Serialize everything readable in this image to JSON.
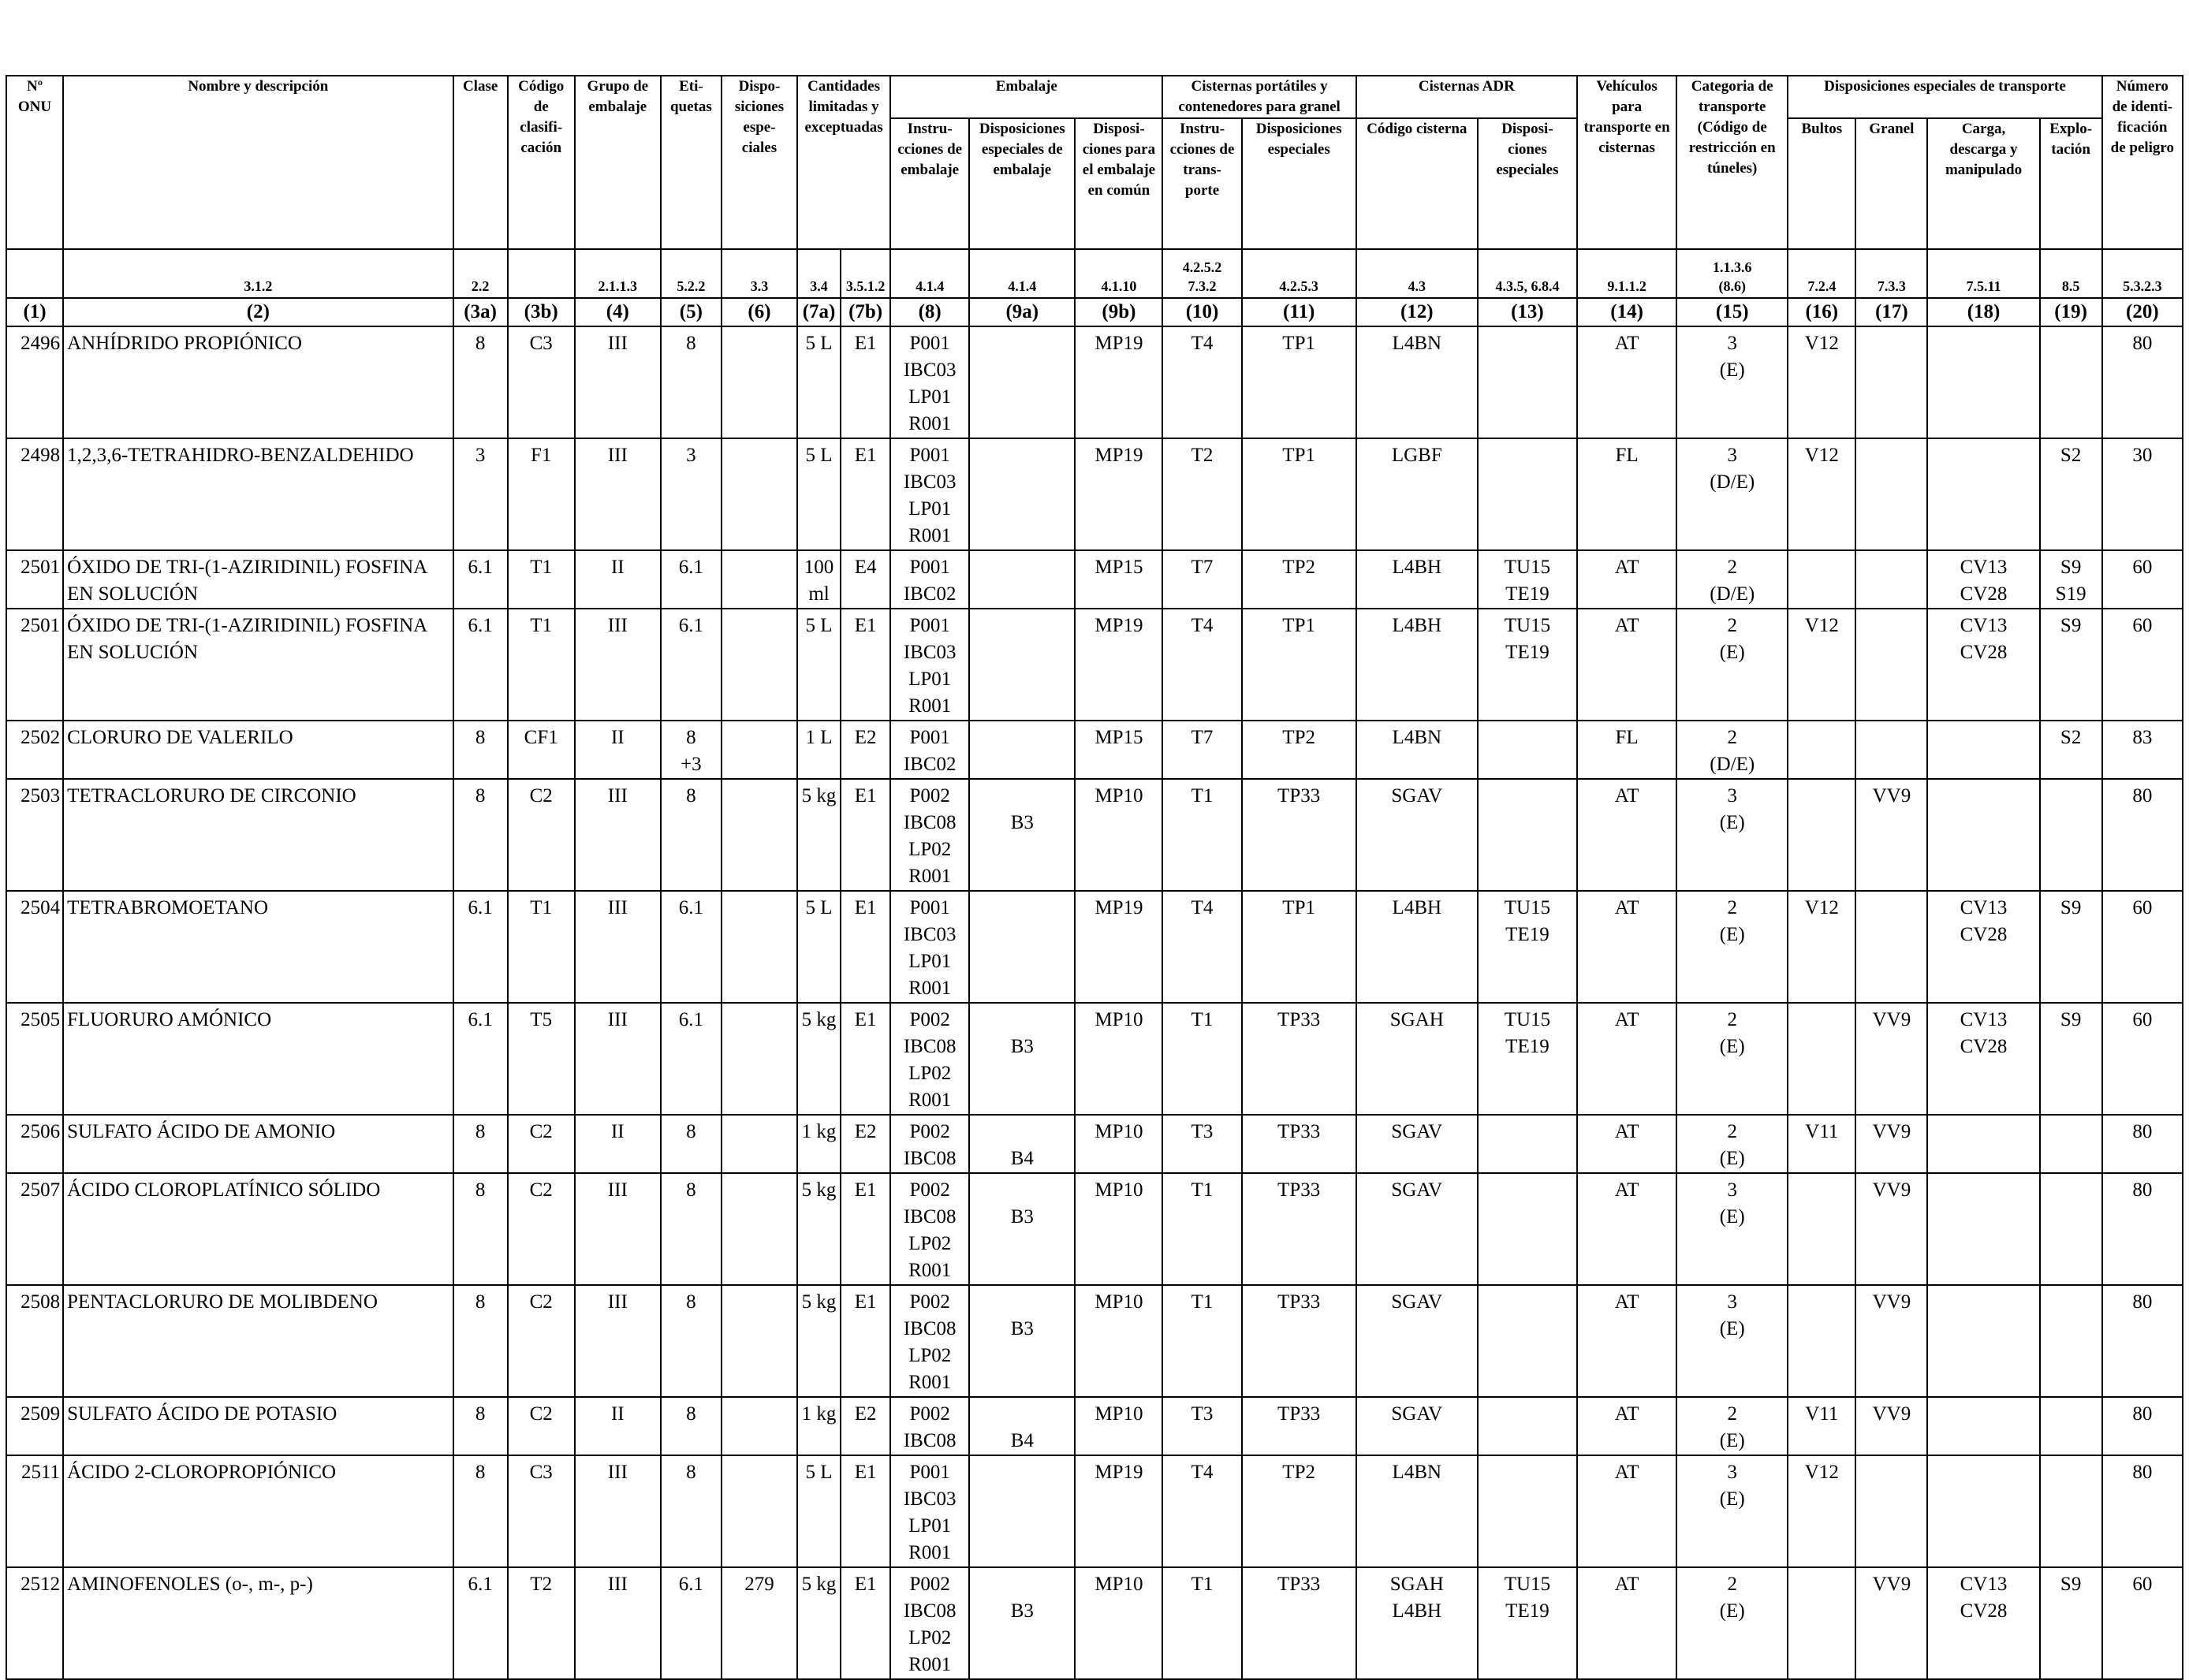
{
  "header": {
    "un": "Nº\nONU",
    "name": "Nombre y descripción",
    "clase": "Clase",
    "codigo": "Código\nde clasifi-\ncación",
    "grupo": "Grupo de\nembalaje",
    "etiquetas": "Eti-\nquetas",
    "disposiciones": "Dispo-\nsiciones\nespe-\nciales",
    "cantidades": "Cantidades\nlimitadas y\nexceptuadas",
    "embalaje": "Embalaje",
    "instrucciones": "Instru-\ncciones de\nembalaje",
    "disp_emb": "Disposiciones\nespeciales de\nembalaje",
    "disp_comun": "Disposi-\nciones para\nel embalaje\nen común",
    "cisternas_port": "Cisternas portátiles y\ncontenedores para granel",
    "instr_transp": "Instru-\ncciones de\ntrans-\nporte",
    "disp_esp_cist": "Disposiciones\nespeciales",
    "cisternas_adr": "Cisternas ADR",
    "codigo_cisterna": "Código cisterna",
    "disp_esp_adr": "Disposi-\nciones\nespeciales",
    "vehiculos": "Vehículos\npara\ntransporte en\ncisternas",
    "categoria": "Categoria de\ntransporte\n(Código de\nrestricción en\ntúneles)",
    "disp_transp": "Disposiciones especiales de transporte",
    "bultos": "Bultos",
    "granel": "Granel",
    "carga": "Carga,\ndescarga y\nmanipulado",
    "explo": "Explo-\ntación",
    "numero": "Número\nde identi-\nficación\nde peligro"
  },
  "refs": [
    "",
    "3.1.2",
    "2.2",
    "",
    "2.1.1.3",
    "5.2.2",
    "3.3",
    "3.4",
    "3.5.1.2",
    "4.1.4",
    "4.1.4",
    "4.1.10",
    "4.2.5.2\n7.3.2",
    "4.2.5.3",
    "4.3",
    "4.3.5, 6.8.4",
    "9.1.1.2",
    "1.1.3.6\n(8.6)",
    "7.2.4",
    "7.3.3",
    "7.5.11",
    "8.5",
    "5.3.2.3"
  ],
  "colnums": [
    "(1)",
    "(2)",
    "(3a)",
    "(3b)",
    "(4)",
    "(5)",
    "(6)",
    "(7a)",
    "(7b)",
    "(8)",
    "(9a)",
    "(9b)",
    "(10)",
    "(11)",
    "(12)",
    "(13)",
    "(14)",
    "(15)",
    "(16)",
    "(17)",
    "(18)",
    "(19)",
    "(20)"
  ],
  "rows": [
    [
      "2496",
      "ANHÍDRIDO PROPIÓNICO",
      "8",
      "C3",
      "III",
      "8",
      "",
      "5 L",
      "E1",
      "P001\nIBC03\nLP01\nR001",
      "",
      "MP19",
      "T4",
      "TP1",
      "L4BN",
      "",
      "AT",
      "3\n(E)",
      "V12",
      "",
      "",
      "",
      "80"
    ],
    [
      "2498",
      "1,2,3,6-TETRAHIDRO-BENZALDEHIDO",
      "3",
      "F1",
      "III",
      "3",
      "",
      "5 L",
      "E1",
      "P001\nIBC03\nLP01\nR001",
      "",
      "MP19",
      "T2",
      "TP1",
      "LGBF",
      "",
      "FL",
      "3\n(D/E)",
      "V12",
      "",
      "",
      "S2",
      "30"
    ],
    [
      "2501",
      "ÓXIDO DE TRI-(1-AZIRIDINIL) FOSFINA\nEN SOLUCIÓN",
      "6.1",
      "T1",
      "II",
      "6.1",
      "",
      "100\nml",
      "E4",
      "P001\nIBC02",
      "",
      "MP15",
      "T7",
      "TP2",
      "L4BH",
      "TU15\nTE19",
      "AT",
      "2\n(D/E)",
      "",
      "",
      "CV13\nCV28",
      "S9\nS19",
      "60"
    ],
    [
      "2501",
      "ÓXIDO DE TRI-(1-AZIRIDINIL) FOSFINA\nEN SOLUCIÓN",
      "6.1",
      "T1",
      "III",
      "6.1",
      "",
      "5 L",
      "E1",
      "P001\nIBC03\nLP01\nR001",
      "",
      "MP19",
      "T4",
      "TP1",
      "L4BH",
      "TU15\nTE19",
      "AT",
      "2\n(E)",
      "V12",
      "",
      "CV13\nCV28",
      "S9",
      "60"
    ],
    [
      "2502",
      "CLORURO DE VALERILO",
      "8",
      "CF1",
      "II",
      "8\n+3",
      "",
      "1 L",
      "E2",
      "P001\nIBC02",
      "",
      "MP15",
      "T7",
      "TP2",
      "L4BN",
      "",
      "FL",
      "2\n(D/E)",
      "",
      "",
      "",
      "S2",
      "83"
    ],
    [
      "2503",
      "TETRACLORURO DE CIRCONIO",
      "8",
      "C2",
      "III",
      "8",
      "",
      "5 kg",
      "E1",
      "P002\nIBC08\nLP02\nR001",
      "\nB3",
      "MP10",
      "T1",
      "TP33",
      "SGAV",
      "",
      "AT",
      "3\n(E)",
      "",
      "VV9",
      "",
      "",
      "80"
    ],
    [
      "2504",
      "TETRABROMOETANO",
      "6.1",
      "T1",
      "III",
      "6.1",
      "",
      "5 L",
      "E1",
      "P001\nIBC03\nLP01\nR001",
      "",
      "MP19",
      "T4",
      "TP1",
      "L4BH",
      "TU15\nTE19",
      "AT",
      "2\n(E)",
      "V12",
      "",
      "CV13\nCV28",
      "S9",
      "60"
    ],
    [
      "2505",
      "FLUORURO AMÓNICO",
      "6.1",
      "T5",
      "III",
      "6.1",
      "",
      "5 kg",
      "E1",
      "P002\nIBC08\nLP02\nR001",
      "\nB3",
      "MP10",
      "T1",
      "TP33",
      "SGAH",
      "TU15\nTE19",
      "AT",
      "2\n(E)",
      "",
      "VV9",
      "CV13\nCV28",
      "S9",
      "60"
    ],
    [
      "2506",
      "SULFATO ÁCIDO DE AMONIO",
      "8",
      "C2",
      "II",
      "8",
      "",
      "1 kg",
      "E2",
      "P002\nIBC08",
      "\nB4",
      "MP10",
      "T3",
      "TP33",
      "SGAV",
      "",
      "AT",
      "2\n(E)",
      "V11",
      "VV9",
      "",
      "",
      "80"
    ],
    [
      "2507",
      "ÁCIDO CLOROPLATÍNICO SÓLIDO",
      "8",
      "C2",
      "III",
      "8",
      "",
      "5 kg",
      "E1",
      "P002\nIBC08\nLP02\nR001",
      "\nB3",
      "MP10",
      "T1",
      "TP33",
      "SGAV",
      "",
      "AT",
      "3\n(E)",
      "",
      "VV9",
      "",
      "",
      "80"
    ],
    [
      "2508",
      "PENTACLORURO DE MOLIBDENO",
      "8",
      "C2",
      "III",
      "8",
      "",
      "5 kg",
      "E1",
      "P002\nIBC08\nLP02\nR001",
      "\nB3",
      "MP10",
      "T1",
      "TP33",
      "SGAV",
      "",
      "AT",
      "3\n(E)",
      "",
      "VV9",
      "",
      "",
      "80"
    ],
    [
      "2509",
      "SULFATO ÁCIDO DE POTASIO",
      "8",
      "C2",
      "II",
      "8",
      "",
      "1 kg",
      "E2",
      "P002\nIBC08",
      "\nB4",
      "MP10",
      "T3",
      "TP33",
      "SGAV",
      "",
      "AT",
      "2\n(E)",
      "V11",
      "VV9",
      "",
      "",
      "80"
    ],
    [
      "2511",
      "ÁCIDO 2-CLOROPROPIÓNICO",
      "8",
      "C3",
      "III",
      "8",
      "",
      "5 L",
      "E1",
      "P001\nIBC03\nLP01\nR001",
      "",
      "MP19",
      "T4",
      "TP2",
      "L4BN",
      "",
      "AT",
      "3\n(E)",
      "V12",
      "",
      "",
      "",
      "80"
    ],
    [
      "2512",
      "AMINOFENOLES (o-, m-, p-)",
      "6.1",
      "T2",
      "III",
      "6.1",
      "279",
      "5 kg",
      "E1",
      "P002\nIBC08\nLP02\nR001",
      "\nB3",
      "MP10",
      "T1",
      "TP33",
      "SGAH\nL4BH",
      "TU15\nTE19",
      "AT",
      "2\n(E)",
      "",
      "VV9",
      "CV13\nCV28",
      "S9",
      "60"
    ]
  ]
}
